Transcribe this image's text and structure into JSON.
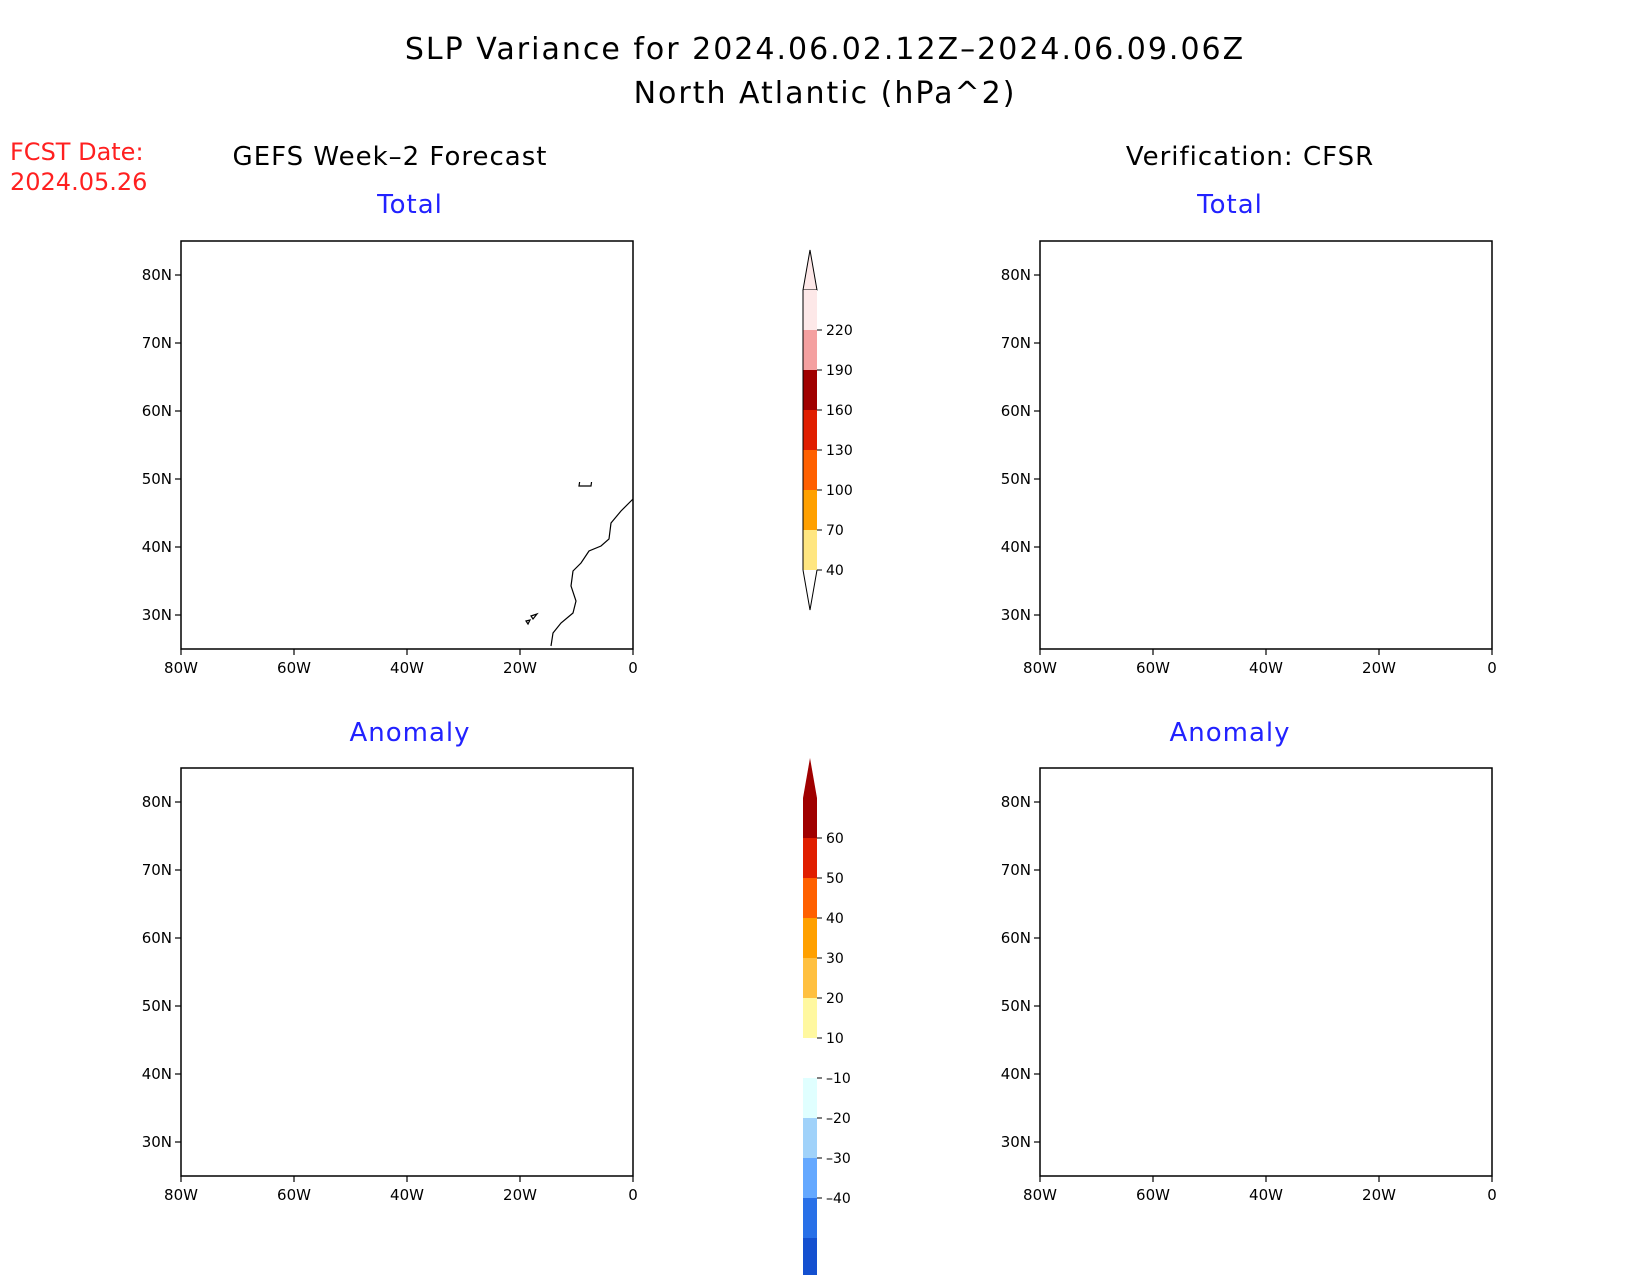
{
  "title_line1": "SLP Variance for 2024.06.02.12Z–2024.06.09.06Z",
  "title_line2": "North Atlantic (hPa^2)",
  "fcst_date_label": "FCST Date:",
  "fcst_date_value": "2024.05.26",
  "left_column_title": "GEFS Week–2 Forecast",
  "right_column_title": "Verification: CFSR",
  "panel_subtitles": {
    "top_left": "Total",
    "top_right": "Total",
    "bottom_left": "Anomaly",
    "bottom_right": "Anomaly"
  },
  "map": {
    "lon_ticks": [
      "80W",
      "60W",
      "40W",
      "20W",
      "0"
    ],
    "lat_ticks": [
      "80N",
      "70N",
      "60N",
      "50N",
      "40N",
      "30N"
    ],
    "lon_range": [
      -80,
      0
    ],
    "lat_range": [
      25,
      85
    ]
  },
  "colorbar_total": {
    "ticks": [
      "220",
      "190",
      "160",
      "130",
      "100",
      "70",
      "40"
    ],
    "colors": [
      "#fde8e8",
      "#f4a0a0",
      "#a00000",
      "#e01e00",
      "#ff6000",
      "#ffa000",
      "#ffe680"
    ]
  },
  "colorbar_anomaly": {
    "ticks": [
      "60",
      "50",
      "40",
      "30",
      "20",
      "10",
      "–10",
      "–20",
      "–30",
      "–40"
    ],
    "colors": [
      "#a00000",
      "#e01e00",
      "#ff6000",
      "#ffa000",
      "#ffc040",
      "#fff8a0",
      "#ffffff",
      "#e0ffff",
      "#a0d2fa",
      "#64a8ff",
      "#2870e8",
      "#1450d0"
    ]
  },
  "fill_colors": {
    "total_light": "#ffe680",
    "total_orange": "#ffa000",
    "anom_yellow": "#fff8a0",
    "anom_light_orange": "#ffc040",
    "anom_orange": "#ffa000",
    "anom_dark_orange": "#ff6000",
    "anom_red": "#e01e00",
    "anom_dark_red": "#a00000",
    "anom_cyan": "#e0ffff",
    "anom_light_blue": "#a0d2fa",
    "anom_blue": "#3c7ee8",
    "anom_dark_blue": "#1450d0"
  }
}
